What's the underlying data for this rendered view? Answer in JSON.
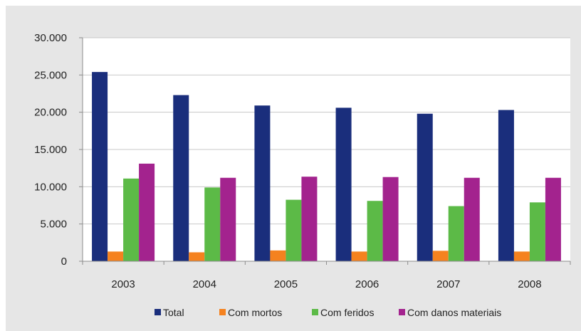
{
  "chart_data": {
    "type": "bar",
    "categories": [
      "2003",
      "2004",
      "2005",
      "2006",
      "2007",
      "2008"
    ],
    "series": [
      {
        "name": "Total",
        "color": "#1a2e7c",
        "values": [
          25400,
          22300,
          20900,
          20600,
          19800,
          20300
        ]
      },
      {
        "name": "Com mortos",
        "color": "#f5821f",
        "values": [
          1300,
          1200,
          1450,
          1300,
          1400,
          1300
        ]
      },
      {
        "name": "Com feridos",
        "color": "#5cba47",
        "values": [
          11100,
          9900,
          8250,
          8100,
          7400,
          7900
        ]
      },
      {
        "name": "Com danos materiais",
        "color": "#a3238e",
        "values": [
          13100,
          11200,
          11350,
          11300,
          11200,
          11200
        ]
      }
    ],
    "yticks": [
      0,
      5000,
      10000,
      15000,
      20000,
      25000,
      30000
    ],
    "ytick_labels": [
      "0",
      "5.000",
      "10.000",
      "15.000",
      "20.000",
      "25.000",
      "30.000"
    ],
    "ylim": [
      0,
      30000
    ],
    "grid": true,
    "legend_position": "bottom",
    "title": "",
    "xlabel": "",
    "ylabel": ""
  }
}
